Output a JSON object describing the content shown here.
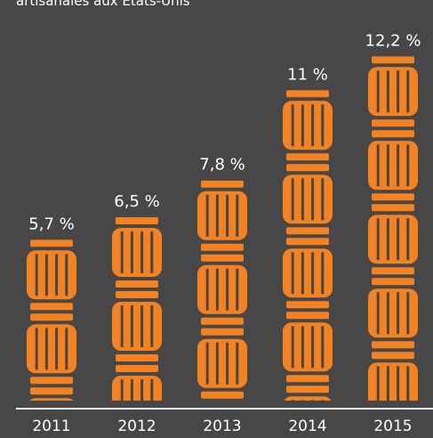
{
  "chart_data": {
    "type": "bar",
    "title_fragment": "artisanales aux États-Unis",
    "categories": [
      "2011",
      "2012",
      "2013",
      "2014",
      "2015"
    ],
    "values": [
      5.7,
      6.5,
      7.8,
      11.0,
      12.2
    ],
    "value_labels": [
      "5,7 %",
      "6,5 %",
      "7,8 %",
      "11 %",
      "12,2 %"
    ],
    "ylim": [
      0,
      12.2
    ],
    "grid": false,
    "colors": {
      "background": "#474747",
      "bar": "#f58220",
      "text": "#ffffff",
      "baseline": "#ffffff"
    },
    "mark_icon": "barrel-icon"
  }
}
